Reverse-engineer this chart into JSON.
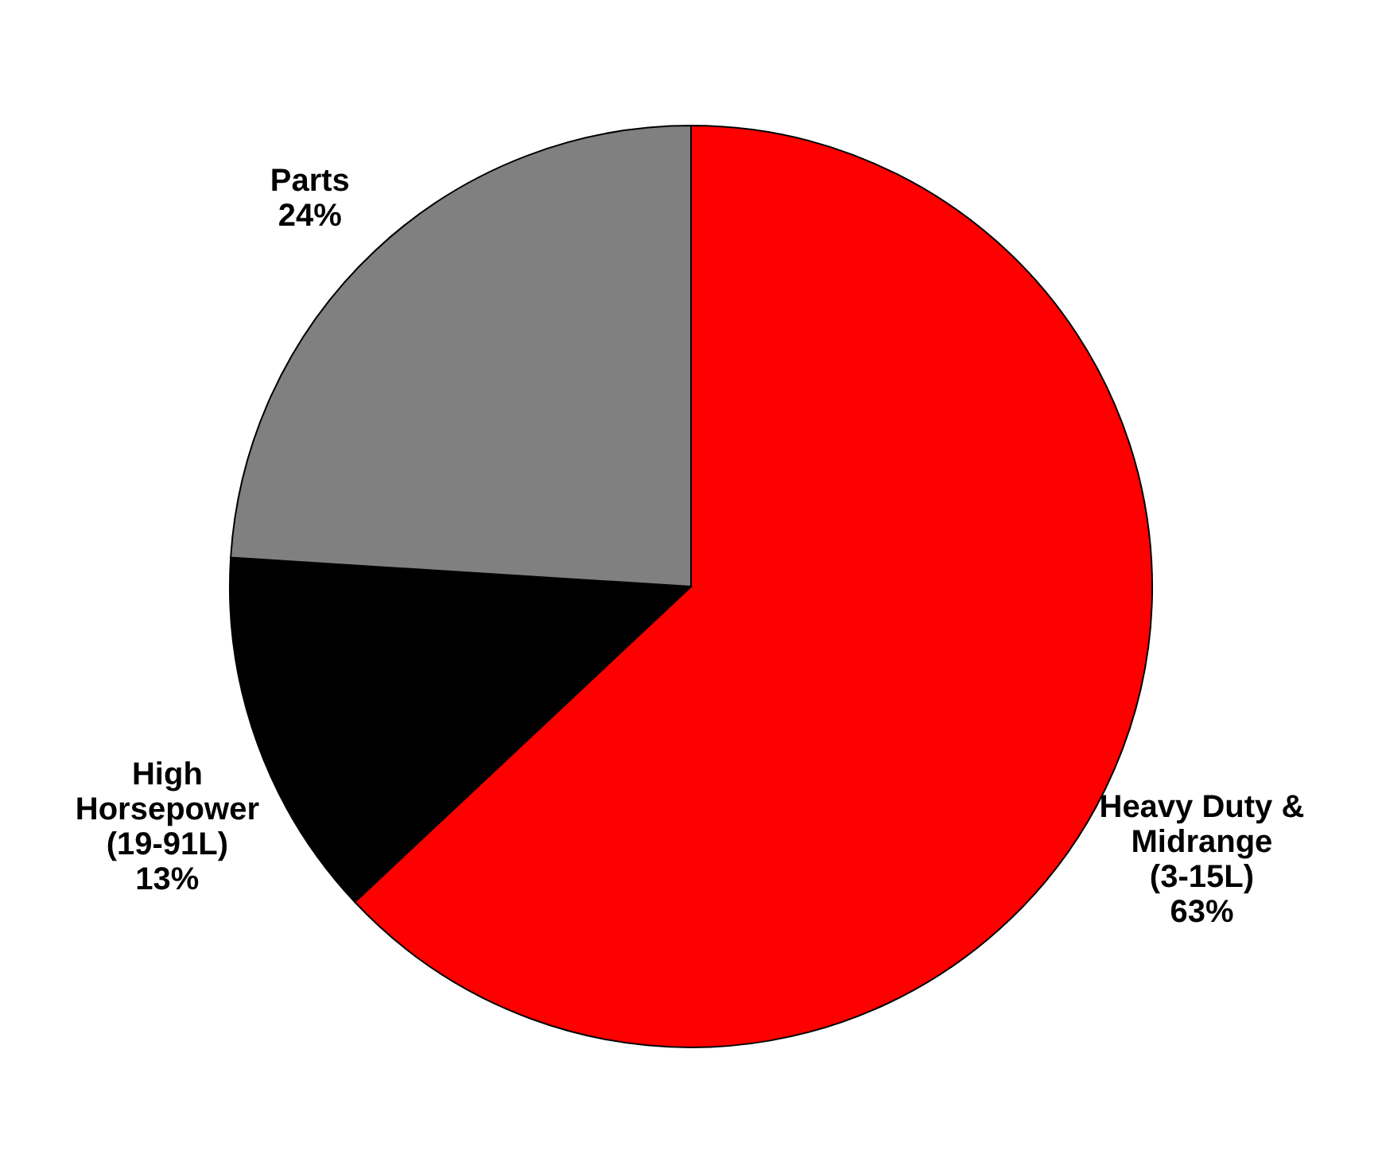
{
  "chart_data": {
    "type": "pie",
    "categories": [
      "Heavy Duty & Midrange (3-15L)",
      "High Horsepower (19-91L)",
      "Parts"
    ],
    "values": [
      63,
      13,
      24
    ],
    "value_labels": [
      "63%",
      "13%",
      "24%"
    ],
    "colors": [
      "#ff0000",
      "#000000",
      "#808080"
    ]
  }
}
